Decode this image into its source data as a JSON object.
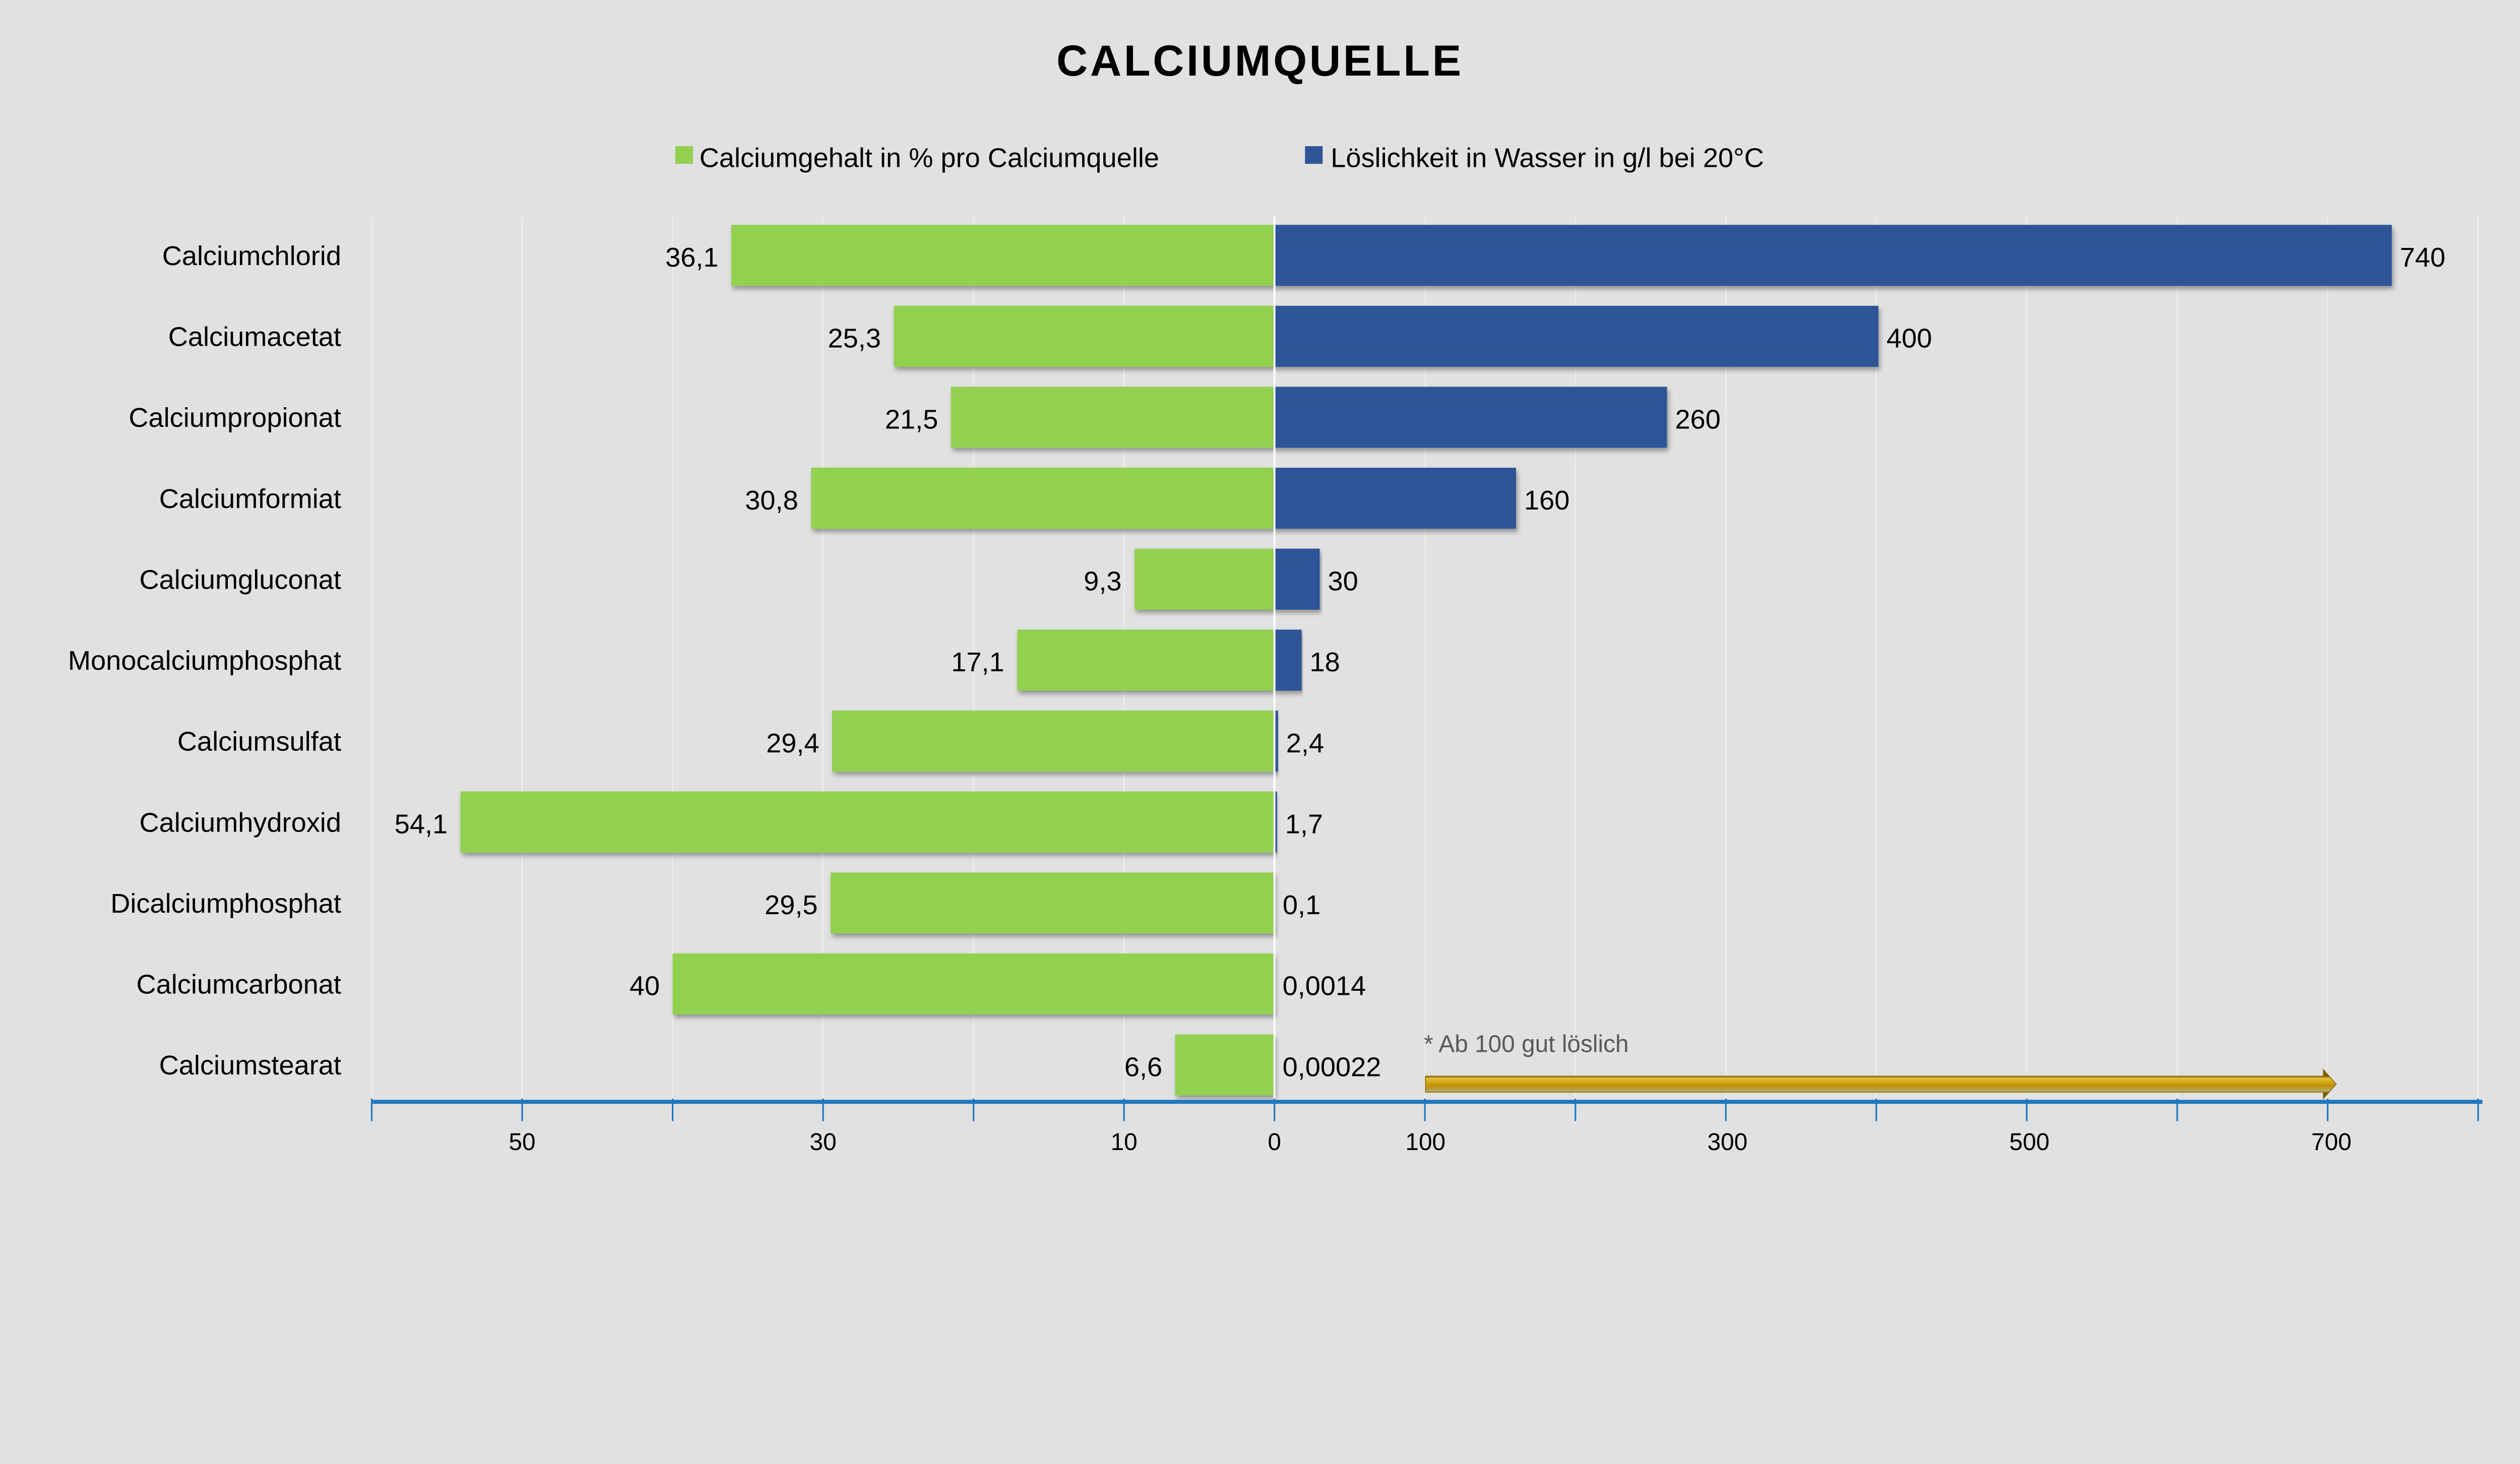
{
  "chart_data": {
    "type": "bar",
    "orientation": "horizontal-diverging",
    "title": "CALCIUMQUELLE",
    "categories": [
      "Calciumchlorid",
      "Calciumacetat",
      "Calciumpropionat",
      "Calciumformiat",
      "Calciumgluconat",
      "Monocalciumphosphat",
      "Calciumsulfat",
      "Calciumhydroxid",
      "Dicalciumphosphat",
      "Calciumcarbonat",
      "Calciumstearat"
    ],
    "series": [
      {
        "name": "Calciumgehalt in % pro Calciumquelle",
        "side": "left",
        "color": "#92d050",
        "values": [
          36.1,
          25.3,
          21.5,
          30.8,
          9.3,
          17.1,
          29.4,
          54.1,
          29.5,
          40,
          6.6
        ],
        "labels": [
          "36,1",
          "25,3",
          "21,5",
          "30,8",
          "9,3",
          "17,1",
          "29,4",
          "54,1",
          "29,5",
          "40",
          "6,6"
        ],
        "axis_range": [
          0,
          60
        ]
      },
      {
        "name": "Löslichkeit in Wasser in g/l bei 20°C",
        "side": "right",
        "color": "#2f5597",
        "values": [
          740,
          400,
          260,
          160,
          30,
          18,
          2.4,
          1.7,
          0.1,
          0.0014,
          0.00022
        ],
        "labels": [
          "740",
          "400",
          "260",
          "160",
          "30",
          "18",
          "2,4",
          "1,7",
          "0,1",
          "0,0014",
          "0,00022"
        ],
        "axis_range": [
          0,
          800
        ]
      }
    ],
    "x_tick_labels": [
      "50",
      "30",
      "10",
      "0",
      "100",
      "300",
      "500",
      "700"
    ],
    "annotation": {
      "text": "* Ab 100 gut löslich",
      "arrow_from": 100,
      "arrow_to": 700,
      "arrow_color": "#c09000"
    },
    "legend_position": "top",
    "grid": "vertical-faint",
    "axis_color": "#1f77c0"
  }
}
